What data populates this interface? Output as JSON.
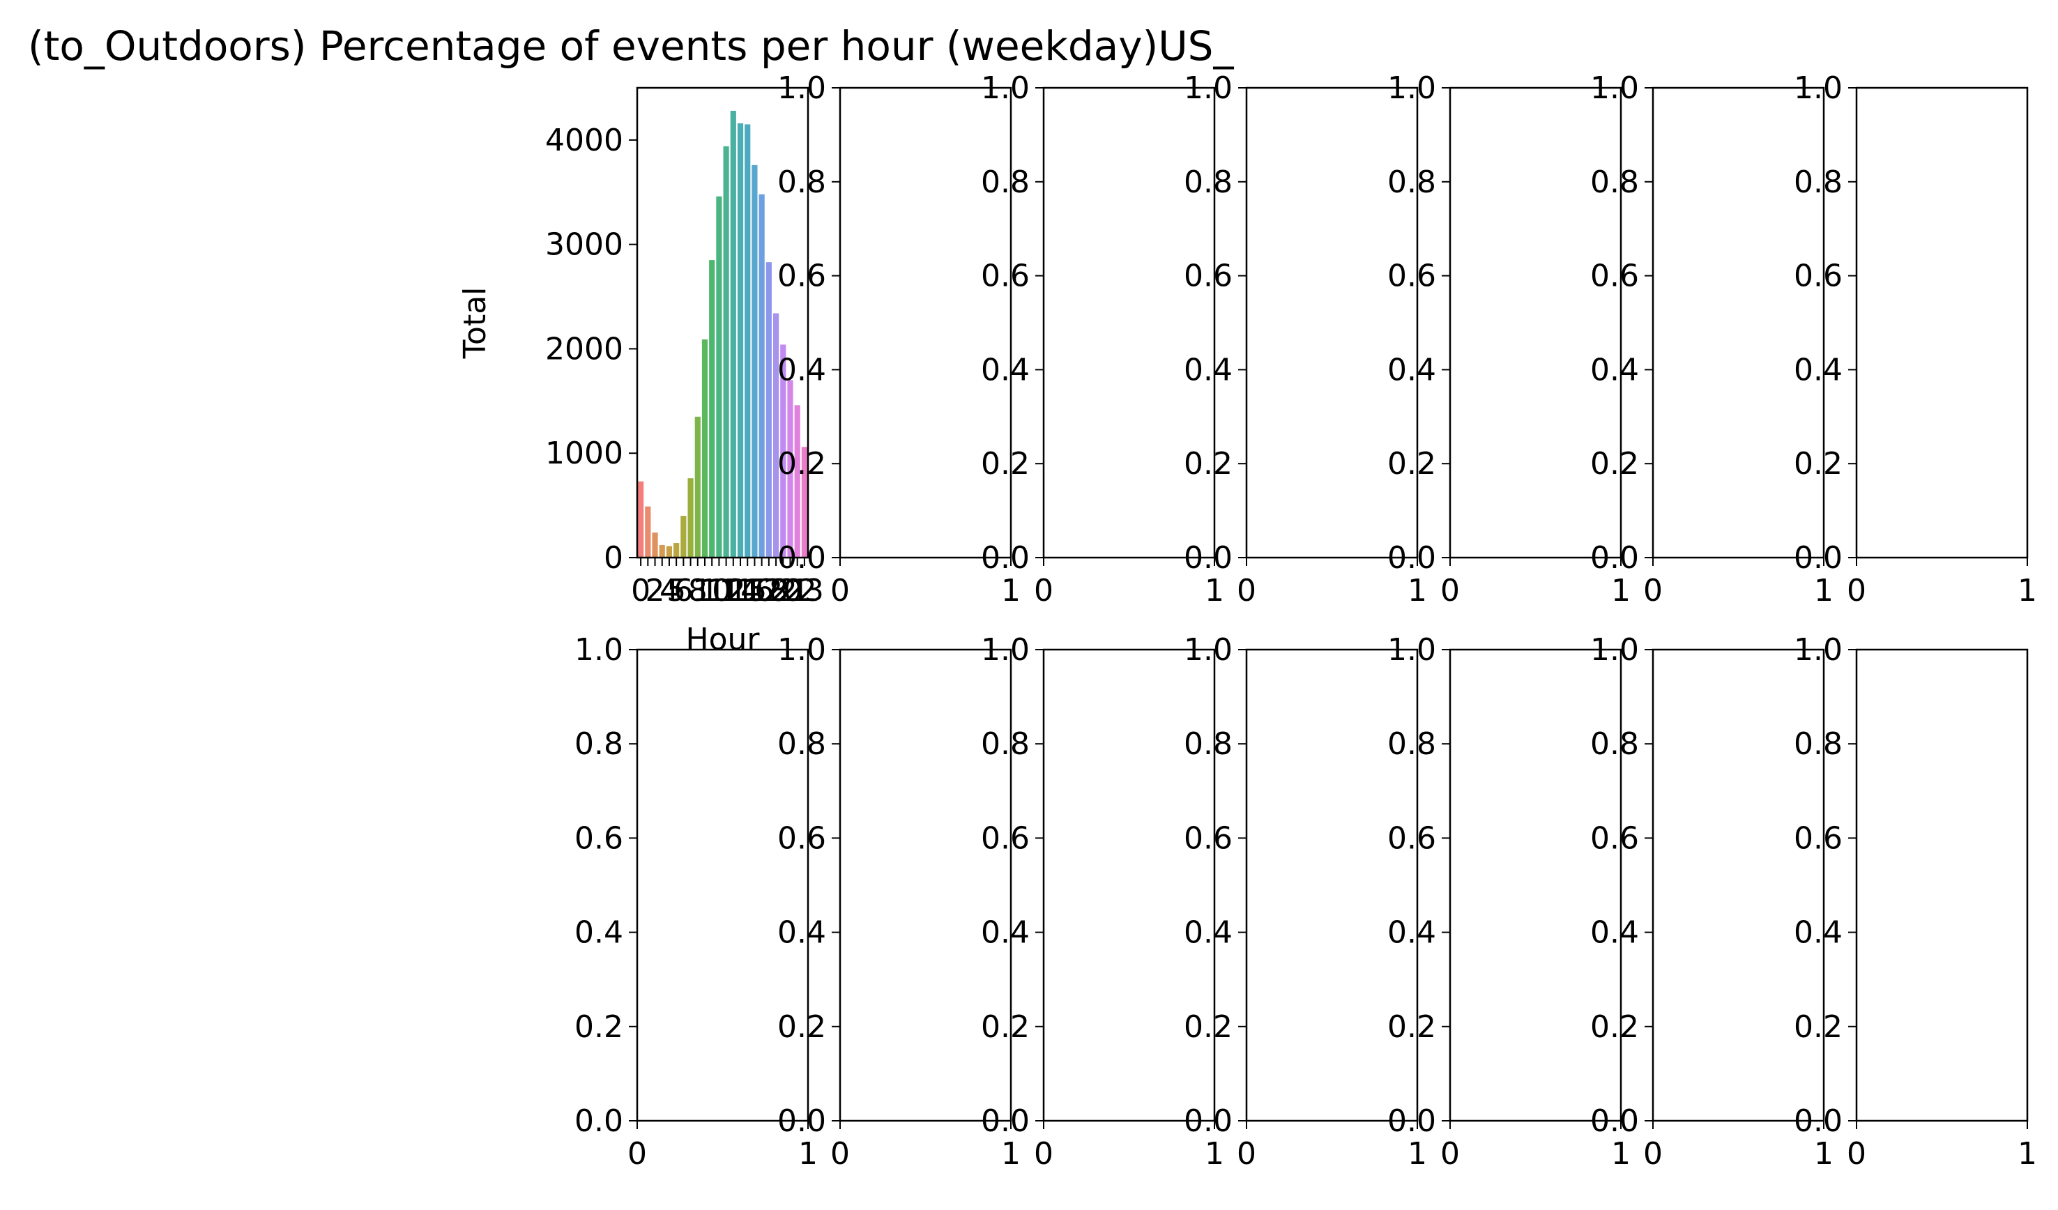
{
  "title": "(to_Outdoors) Percentage of events per hour (weekday)US_",
  "chart_data": [
    {
      "type": "bar",
      "panel": "row-1-col-1",
      "xlabel": "Hour",
      "ylabel": "Total",
      "categories": [
        "0",
        "1",
        "2",
        "3",
        "4",
        "5",
        "6",
        "7",
        "8",
        "9",
        "10",
        "11",
        "12",
        "13",
        "14",
        "15",
        "16",
        "17",
        "18",
        "19",
        "20",
        "21",
        "22",
        "23"
      ],
      "tick_labels": [
        "0",
        "2",
        "4",
        "5",
        "6",
        "8",
        "10",
        "11",
        "12",
        "14",
        "15",
        "16",
        "17",
        "18",
        "20",
        "21",
        "22",
        "23"
      ],
      "values": [
        730,
        490,
        240,
        120,
        110,
        140,
        400,
        760,
        1350,
        2090,
        2850,
        3460,
        3940,
        4280,
        4160,
        4150,
        3760,
        3480,
        2830,
        2340,
        2040,
        1700,
        1460,
        1060
      ],
      "colors": [
        "#f37e7b",
        "#e98b6c",
        "#df915e",
        "#d49a4f",
        "#c8a047",
        "#baa63f",
        "#a9ab3d",
        "#97b03c",
        "#7fb44a",
        "#5cb85c",
        "#4cb86f",
        "#4ab580",
        "#4bb391",
        "#4ab0a2",
        "#4aaeb2",
        "#4caac1",
        "#59a6cf",
        "#6e9fe0",
        "#8c99ea",
        "#a792ee",
        "#c08af0",
        "#d486ea",
        "#e181db",
        "#ea7dc8"
      ],
      "yticks": [
        "0",
        "1000",
        "2000",
        "3000",
        "4000"
      ],
      "ylim": [
        0,
        4500
      ],
      "legend": "none",
      "grid": false
    },
    {
      "type": "empty",
      "panels": 13,
      "xticks": [
        "0",
        "1"
      ],
      "yticks": [
        "0.0",
        "0.2",
        "0.4",
        "0.6",
        "0.8",
        "1.0"
      ],
      "xlim": [
        0,
        1
      ],
      "ylim": [
        0,
        1
      ]
    }
  ]
}
